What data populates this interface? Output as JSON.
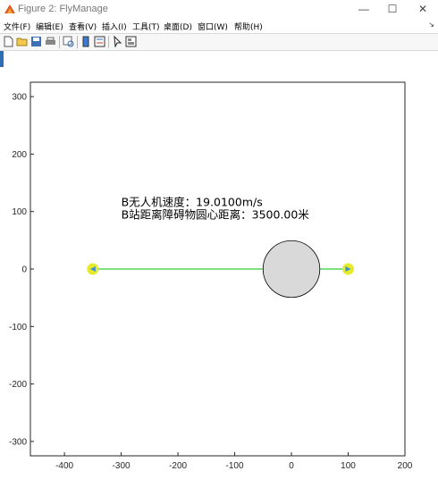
{
  "window": {
    "title": "Figure 2: FlyManage",
    "minimize_glyph": "—",
    "maximize_glyph": "☐",
    "close_glyph": "✕"
  },
  "menu": {
    "items": [
      "文件(F)",
      "编辑(E)",
      "查看(V)",
      "插入(I)",
      "工具(T)",
      "桌面(D)",
      "窗口(W)",
      "帮助(H)"
    ],
    "overflow_glyph": "↘"
  },
  "toolbar": {
    "buttons": [
      "new-figure-icon",
      "open-file-icon",
      "save-icon",
      "print-icon",
      "print-preview-icon",
      "link-icon",
      "colorbar-icon",
      "legend-icon",
      "pointer-icon",
      "property-editor-icon"
    ]
  },
  "chart_data": {
    "type": "scatter",
    "xlim": [
      -460,
      200
    ],
    "ylim": [
      -325,
      325
    ],
    "x_ticks": [
      "-400",
      "-300",
      "-200",
      "-100",
      "0",
      "100",
      "200"
    ],
    "y_ticks": [
      "300",
      "200",
      "100",
      "0",
      "-100",
      "-200",
      "-300"
    ],
    "grid": false,
    "path": {
      "x": [
        -350,
        100
      ],
      "y": [
        0,
        0
      ],
      "color": "#7fe07f"
    },
    "points": [
      {
        "x": -350,
        "y": 0,
        "fill": "#e7ea2b",
        "marker_color": "#3d8fd6"
      },
      {
        "x": 100,
        "y": 0,
        "fill": "#e7ea2b",
        "marker_color": "#3d8fd6"
      }
    ],
    "obstacle": {
      "center_x": 0,
      "center_y": 0,
      "radius": 50,
      "fill": "#d9d9d9",
      "edge": "#000000"
    },
    "annotation": {
      "x": -300,
      "y": 110,
      "lines": [
        "B无人机速度：19.0100m/s",
        "B站距离障碍物圆心距离：3500.00米"
      ]
    }
  }
}
